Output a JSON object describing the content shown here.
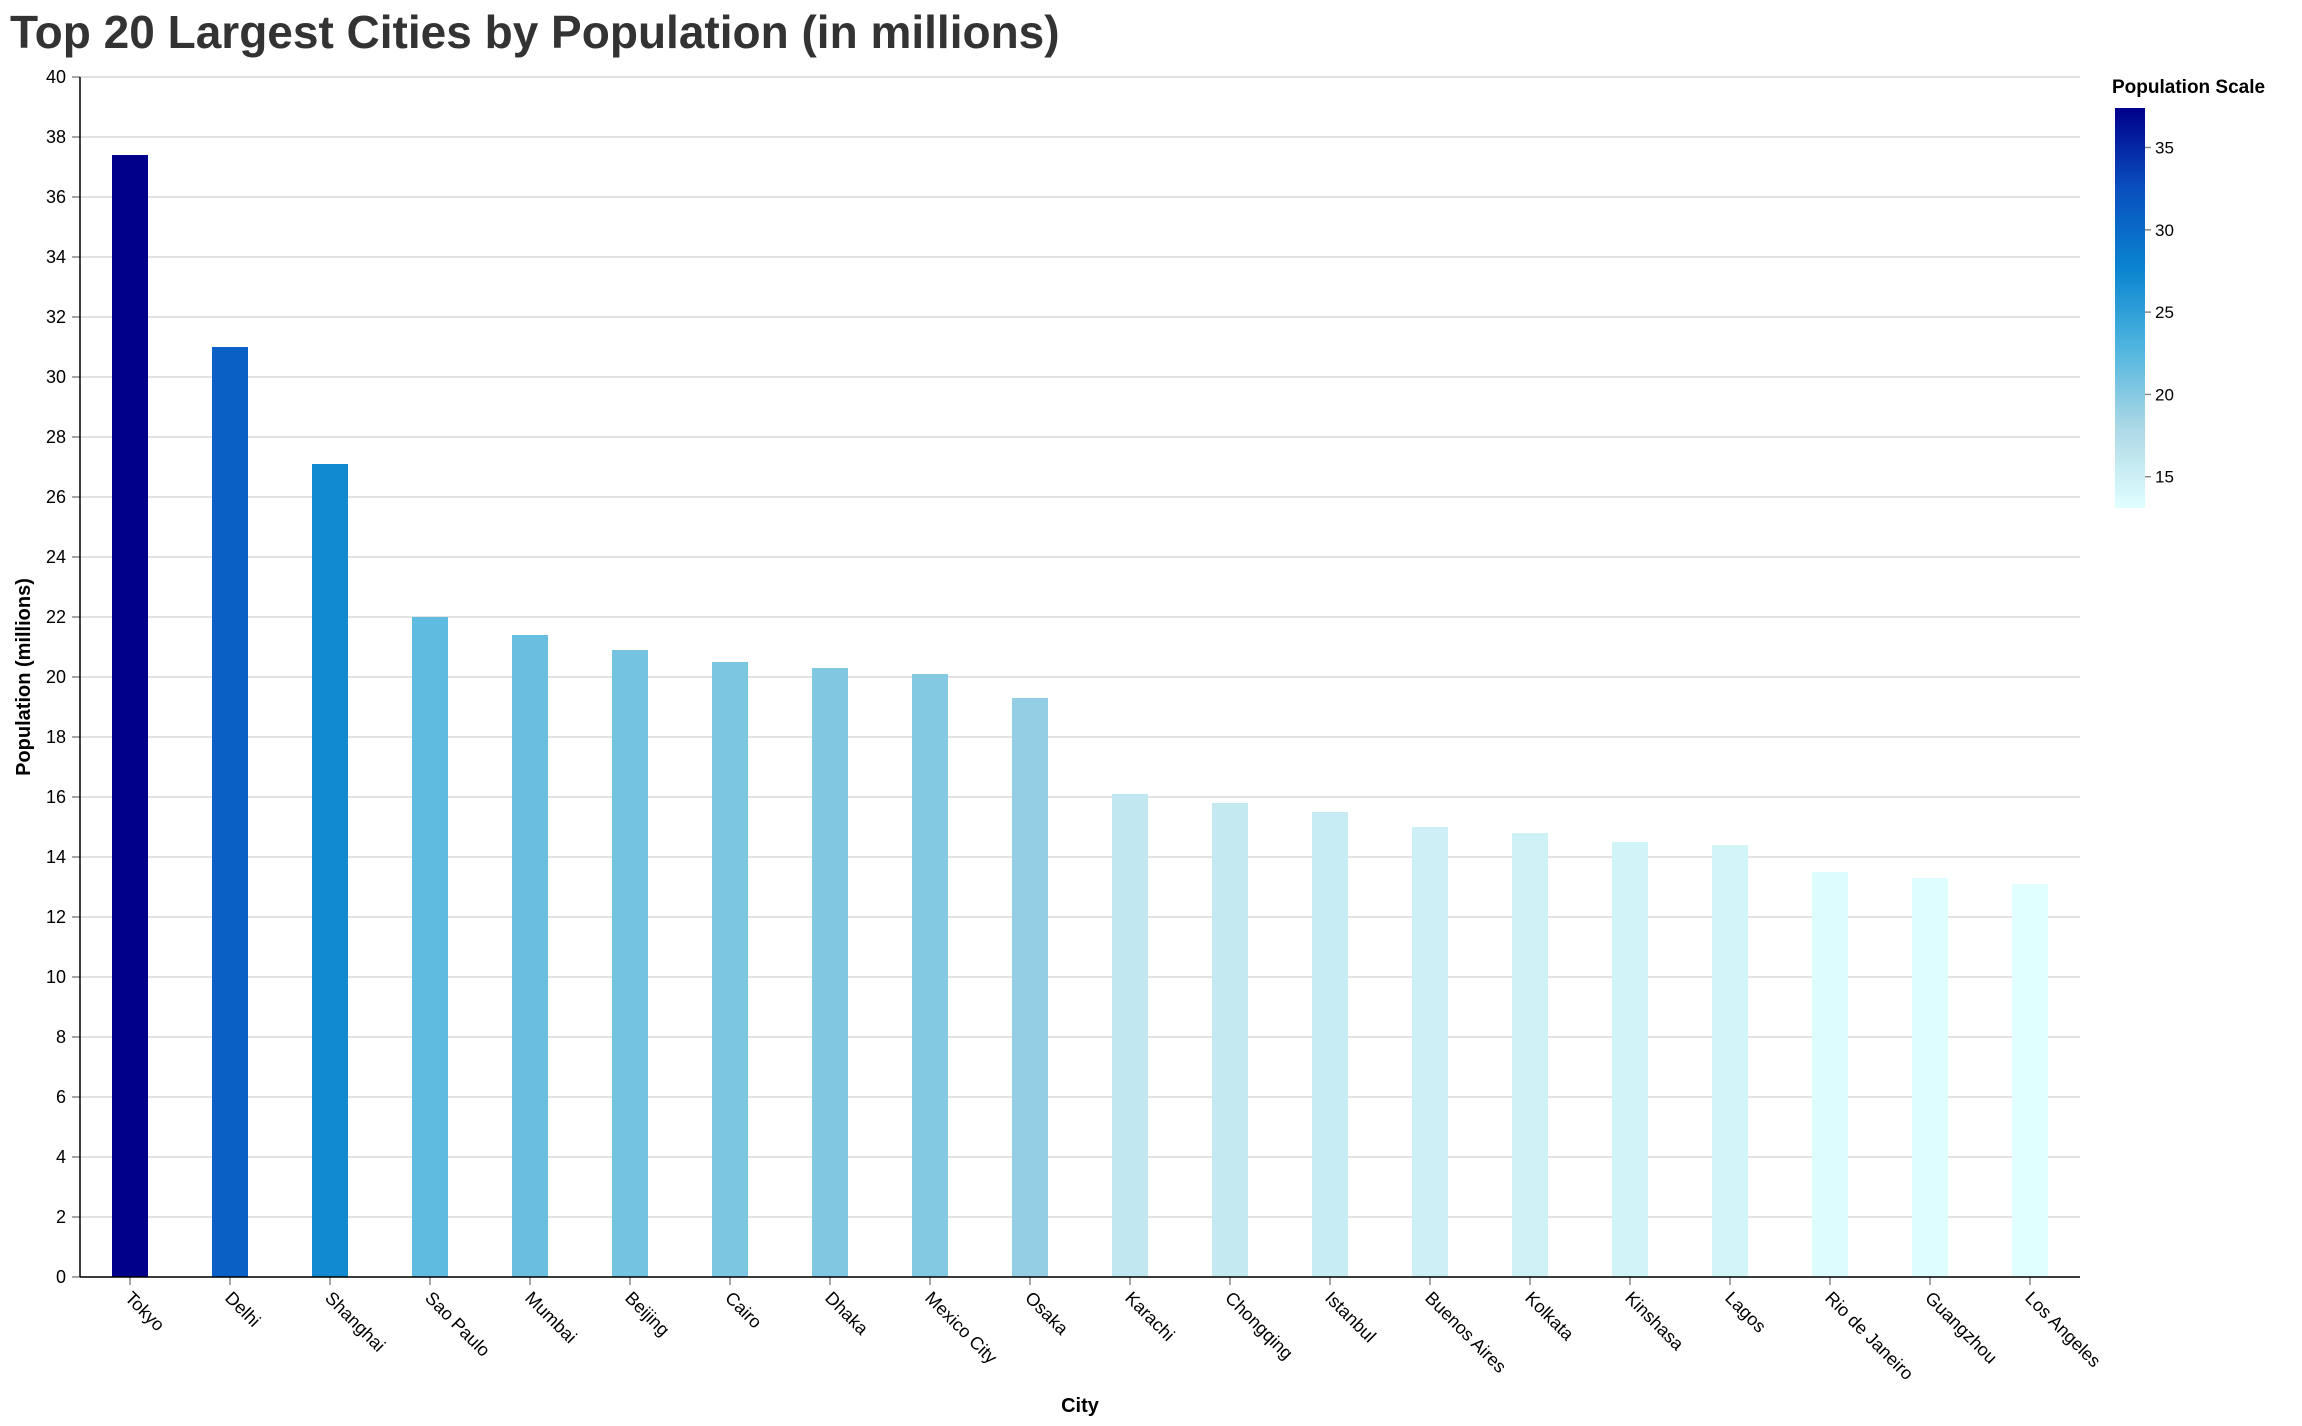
{
  "chart_data": {
    "type": "bar",
    "title": "Top 20 Largest Cities by Population (in millions)",
    "xlabel": "City",
    "ylabel": "Population (millions)",
    "ylim": [
      0,
      40
    ],
    "y_ticks": [
      0,
      2,
      4,
      6,
      8,
      10,
      12,
      14,
      16,
      18,
      20,
      22,
      24,
      26,
      28,
      30,
      32,
      34,
      36,
      38,
      40
    ],
    "grid": true,
    "categories": [
      "Tokyo",
      "Delhi",
      "Shanghai",
      "Sao Paulo",
      "Mumbai",
      "Beijing",
      "Cairo",
      "Dhaka",
      "Mexico City",
      "Osaka",
      "Karachi",
      "Chongqing",
      "Istanbul",
      "Buenos Aires",
      "Kolkata",
      "Kinshasa",
      "Lagos",
      "Rio de Janeiro",
      "Guangzhou",
      "Los Angeles"
    ],
    "values": [
      37.4,
      31.0,
      27.1,
      22.0,
      21.4,
      20.9,
      20.5,
      20.3,
      20.1,
      19.3,
      16.1,
      15.8,
      15.5,
      15.0,
      14.8,
      14.5,
      14.4,
      13.5,
      13.3,
      13.1
    ],
    "legend": {
      "title": "Population Scale",
      "placement": "top-right",
      "domain": [
        13.1,
        37.4
      ],
      "ticks": [
        15,
        20,
        25,
        30,
        35
      ],
      "color_stops": [
        "#e0ffff",
        "#add8e6",
        "#4fb5de",
        "#0a84d0",
        "#0a4fbf",
        "#00008b"
      ]
    }
  }
}
